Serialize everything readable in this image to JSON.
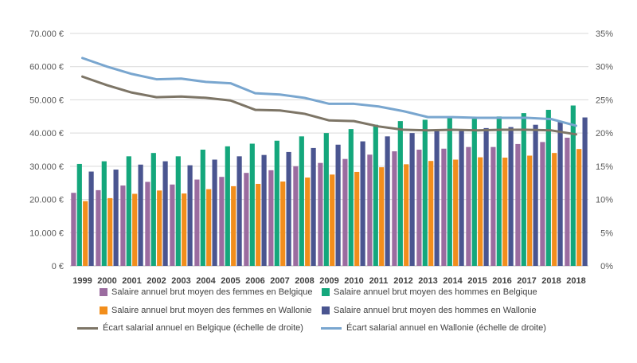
{
  "chart_data": {
    "type": "bar",
    "title": "",
    "xlabel": "",
    "ylabel": "",
    "ylim": [
      0,
      70000
    ],
    "y2lim": [
      0,
      0.35
    ],
    "y_ticks": [
      "0 €",
      "10.000 €",
      "20.000 €",
      "30.000 €",
      "40.000 €",
      "50.000 €",
      "60.000 €",
      "70.000 €"
    ],
    "y2_ticks": [
      "0%",
      "5%",
      "10%",
      "15%",
      "20%",
      "25%",
      "30%",
      "35%"
    ],
    "categories": [
      "1999",
      "2000",
      "2001",
      "2002",
      "2003",
      "2004",
      "2005",
      "2006",
      "2007",
      "2008",
      "2009",
      "2010",
      "2011",
      "2012",
      "2013",
      "2014",
      "2015",
      "2016",
      "2017",
      "2018",
      "2018"
    ],
    "grid": true,
    "legend_position": "bottom",
    "series": [
      {
        "name": "Salaire annuel brut moyen des femmes en Belgique",
        "kind": "bar",
        "color": "#9b6ca0",
        "values": [
          22000,
          22800,
          24200,
          25300,
          24500,
          26000,
          26800,
          28000,
          28800,
          30000,
          31000,
          32200,
          33500,
          34500,
          35000,
          35300,
          35800,
          35800,
          36700,
          37300,
          38600
        ]
      },
      {
        "name": "Salaire annuel brut moyen des hommes en Belgique",
        "kind": "bar",
        "color": "#14a77c",
        "values": [
          30700,
          31500,
          33000,
          34000,
          33000,
          35000,
          36000,
          36800,
          37700,
          39000,
          40000,
          41200,
          42500,
          43600,
          44000,
          44500,
          44300,
          45000,
          46000,
          47000,
          48300
        ]
      },
      {
        "name": "Salaire annuel brut moyen des femmes en Wallonie",
        "kind": "bar",
        "color": "#f28e1c",
        "values": [
          19500,
          20400,
          21700,
          22700,
          21800,
          23100,
          24000,
          24700,
          25400,
          26600,
          27500,
          28300,
          29700,
          30600,
          31600,
          32000,
          32700,
          32600,
          33200,
          34000,
          35200
        ]
      },
      {
        "name": "Salaire annuel brut moyen des hommes en Wallonie",
        "kind": "bar",
        "color": "#4a5590",
        "values": [
          28400,
          29000,
          30500,
          31500,
          30300,
          32000,
          33000,
          33400,
          34300,
          35500,
          36500,
          37500,
          39000,
          40000,
          40700,
          40900,
          41500,
          41800,
          42500,
          43500,
          44700
        ]
      },
      {
        "name": "Écart salarial annuel en Belgique (échelle de droite)",
        "kind": "line",
        "axis": "right",
        "color": "#7d7566",
        "values": [
          0.285,
          0.272,
          0.261,
          0.254,
          0.255,
          0.253,
          0.249,
          0.235,
          0.234,
          0.229,
          0.219,
          0.218,
          0.21,
          0.205,
          0.204,
          0.205,
          0.204,
          0.205,
          0.205,
          0.204,
          0.198
        ]
      },
      {
        "name": "Écart salarial annuel en Wallonie (échelle de droite)",
        "kind": "line",
        "axis": "right",
        "color": "#79a6cf",
        "values": [
          0.313,
          0.3,
          0.289,
          0.281,
          0.282,
          0.277,
          0.275,
          0.26,
          0.258,
          0.253,
          0.244,
          0.244,
          0.24,
          0.233,
          0.224,
          0.224,
          0.223,
          0.223,
          0.223,
          0.221,
          0.211
        ]
      }
    ]
  }
}
